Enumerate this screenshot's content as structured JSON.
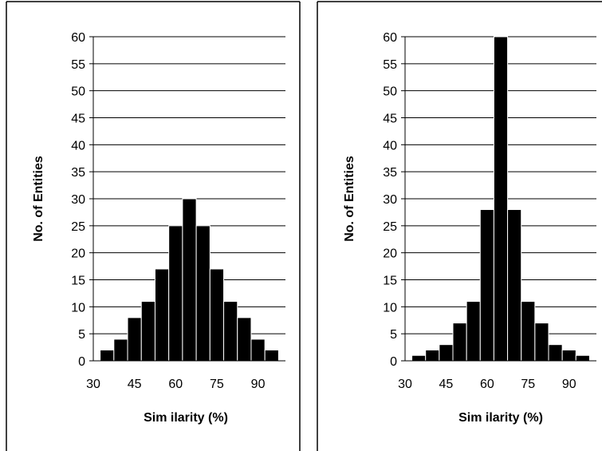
{
  "chart_data": [
    {
      "type": "bar",
      "title": "",
      "xlabel": "Sim ilarity (%)",
      "ylabel": "No. of Entities",
      "x_tick_labels": [
        "30",
        "45",
        "60",
        "75",
        "90"
      ],
      "y_tick_labels": [
        "0",
        "5",
        "10",
        "15",
        "20",
        "25",
        "30",
        "35",
        "40",
        "45",
        "50",
        "55",
        "60"
      ],
      "bin_width": 5,
      "x": [
        35,
        40,
        45,
        50,
        55,
        60,
        65,
        70,
        75,
        80,
        85,
        90,
        95
      ],
      "values": [
        2,
        4,
        8,
        11,
        17,
        25,
        30,
        25,
        17,
        11,
        8,
        4,
        2
      ],
      "xlim": [
        30,
        100
      ],
      "ylim": [
        0,
        60
      ],
      "grid": "horizontal",
      "bar_color": "#000000"
    },
    {
      "type": "bar",
      "title": "",
      "xlabel": "Sim ilarity (%)",
      "ylabel": "No. of Entities",
      "x_tick_labels": [
        "30",
        "45",
        "60",
        "75",
        "90"
      ],
      "y_tick_labels": [
        "0",
        "5",
        "10",
        "15",
        "20",
        "25",
        "30",
        "35",
        "40",
        "45",
        "50",
        "55",
        "60"
      ],
      "bin_width": 5,
      "x": [
        35,
        40,
        45,
        50,
        55,
        60,
        65,
        70,
        75,
        80,
        85,
        90,
        95
      ],
      "values": [
        1,
        2,
        3,
        7,
        11,
        28,
        60,
        28,
        11,
        7,
        3,
        2,
        1
      ],
      "xlim": [
        30,
        100
      ],
      "ylim": [
        0,
        60
      ],
      "grid": "horizontal",
      "bar_color": "#000000"
    }
  ]
}
